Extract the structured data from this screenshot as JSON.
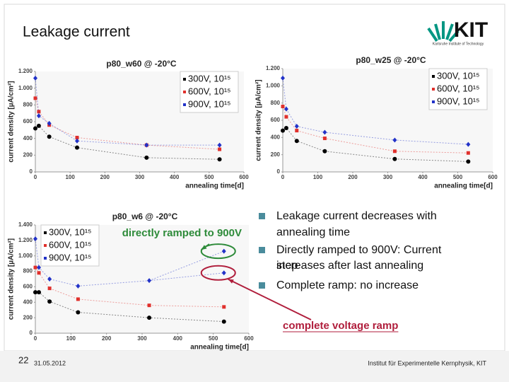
{
  "slide": {
    "title": "Leakage current",
    "logo": "KIT",
    "logo_subtitle": "Karlsruhe Institute of Technology",
    "bullets": [
      "Leakage current decreases with annealing time",
      "Directly ramped to 900V: Current increases after last annealing step",
      "Complete ramp: no increase"
    ],
    "page_number": "22",
    "date": "31.05.2012",
    "institute": "Institut für Experimentelle Kernphysik, KIT"
  },
  "chart_data": [
    {
      "type": "line",
      "title": "p80_w60 @ -20°C",
      "x_label": "annealing time[d]",
      "y_label": "current density [µA/cm²]",
      "x": [
        0,
        10,
        40,
        120,
        320,
        530
      ],
      "xlim": [
        0,
        600
      ],
      "xticks": [
        0,
        100,
        200,
        300,
        400,
        500,
        600
      ],
      "ylim": [
        0,
        1200
      ],
      "yticks": [
        0,
        200,
        400,
        600,
        800,
        {
          "value": 1000,
          "label": "1.000"
        },
        {
          "value": 1200,
          "label": "1.200"
        }
      ],
      "legend": "upper right",
      "series": [
        {
          "name": "300V, 10¹⁵",
          "color": "#000000",
          "values": [
            520,
            550,
            420,
            290,
            170,
            150
          ]
        },
        {
          "name": "600V, 10¹⁵",
          "color": "#e0302c",
          "values": [
            880,
            720,
            560,
            410,
            320,
            270
          ]
        },
        {
          "name": "900V, 10¹⁵",
          "color": "#2232c8",
          "values": [
            1120,
            670,
            580,
            370,
            320,
            320
          ]
        }
      ]
    },
    {
      "type": "line",
      "title": "p80_w25 @ -20°C",
      "x_label": "annealing time[d]",
      "y_label": "current density [µA/cm²]",
      "x": [
        0,
        10,
        40,
        120,
        320,
        530
      ],
      "xlim": [
        0,
        600
      ],
      "xticks": [
        0,
        100,
        200,
        300,
        400,
        500,
        600
      ],
      "ylim": [
        0,
        1200
      ],
      "yticks": [
        0,
        200,
        400,
        600,
        800,
        {
          "value": 1000,
          "label": "1.000"
        },
        {
          "value": 1200,
          "label": "1.200"
        }
      ],
      "legend": "upper right",
      "series": [
        {
          "name": "300V, 10¹⁵",
          "color": "#000000",
          "values": [
            480,
            510,
            360,
            240,
            150,
            120
          ]
        },
        {
          "name": "600V, 10¹⁵",
          "color": "#e0302c",
          "values": [
            760,
            640,
            480,
            390,
            240,
            220
          ]
        },
        {
          "name": "900V, 10¹⁵",
          "color": "#2232c8",
          "values": [
            1090,
            730,
            530,
            460,
            370,
            320
          ]
        }
      ]
    },
    {
      "type": "line",
      "title": "p80_w6 @ -20°C",
      "x_label": "annealing time[d]",
      "y_label": "current density [µA/cm²]",
      "x": [
        0,
        10,
        40,
        120,
        320,
        530
      ],
      "xlim": [
        0,
        600
      ],
      "xticks": [
        0,
        100,
        200,
        300,
        400,
        500,
        600
      ],
      "ylim": [
        0,
        1400
      ],
      "yticks": [
        0,
        200,
        400,
        600,
        800,
        {
          "value": 1000,
          "label": "1.000"
        },
        {
          "value": 1200,
          "label": "1.200"
        },
        {
          "value": 1400,
          "label": "1.400"
        }
      ],
      "legend": "upper left",
      "series": [
        {
          "name": "300V, 10¹⁵",
          "color": "#000000",
          "values": [
            530,
            530,
            410,
            270,
            200,
            150
          ]
        },
        {
          "name": "600V, 10¹⁵",
          "color": "#e0302c",
          "values": [
            850,
            780,
            580,
            440,
            360,
            340
          ]
        },
        {
          "name": "900V, 10¹⁵",
          "color": "#2232c8",
          "values": [
            1220,
            850,
            700,
            610,
            680,
            780
          ]
        }
      ],
      "annotations": [
        {
          "text": "directly ramped to 900V",
          "color": "#2e8b3a",
          "x": 530,
          "y": 1060
        },
        {
          "text": "complete voltage ramp",
          "color": "#b01e3c",
          "x": 530,
          "y": 780
        }
      ]
    }
  ]
}
